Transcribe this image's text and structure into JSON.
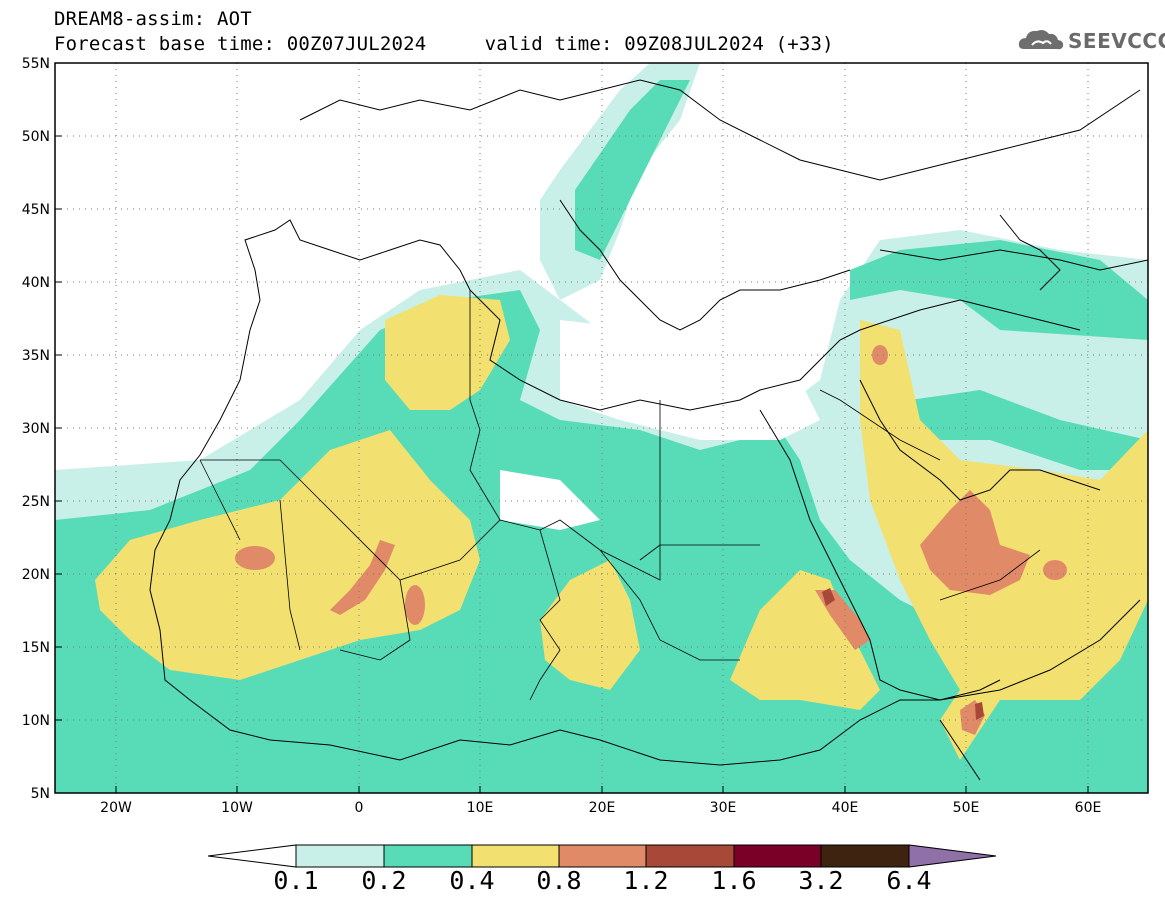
{
  "header": {
    "line1": "DREAM8-assim: AOT",
    "line2": "Forecast base time: 00Z07JUL2024     valid time: 09Z08JUL2024 (+33)"
  },
  "logo": {
    "text": "SEEVCCC",
    "icon": "cloud-icon"
  },
  "map": {
    "lon_range": [
      -25,
      65
    ],
    "lat_range": [
      5,
      55
    ],
    "lat_ticks": [
      "5N",
      "10N",
      "15N",
      "20N",
      "25N",
      "30N",
      "35N",
      "40N",
      "45N",
      "50N",
      "55N"
    ],
    "lon_ticks": [
      "20W",
      "10W",
      "0",
      "10E",
      "20E",
      "30E",
      "40E",
      "50E",
      "60E"
    ],
    "grid": "dotted"
  },
  "colorbar": {
    "labels": [
      "0.1",
      "0.2",
      "0.4",
      "0.8",
      "1.2",
      "1.6",
      "3.2",
      "6.4"
    ],
    "colors": [
      "#c8f0e8",
      "#58dcb8",
      "#f2e070",
      "#e08a68",
      "#a84838",
      "#7a0028",
      "#3e2410",
      "#9070a8"
    ]
  }
}
